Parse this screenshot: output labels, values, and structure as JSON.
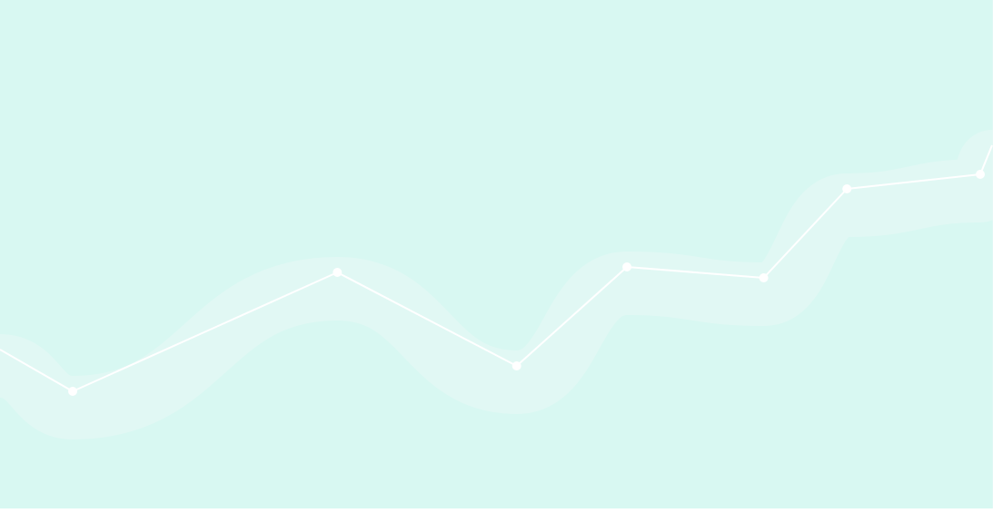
{
  "chart_data": {
    "type": "line",
    "title": "",
    "xlabel": "",
    "ylabel": "",
    "x": [
      0.0,
      0.0733,
      0.34,
      0.5208,
      0.632,
      0.7698,
      0.8537,
      0.9881,
      1.0
    ],
    "series": [
      {
        "values": [
          0.3125,
          0.2304,
          0.4643,
          0.2804,
          0.475,
          0.4536,
          0.6286,
          0.6571,
          0.7143
        ]
      }
    ],
    "xlim": [
      0,
      1
    ],
    "ylim": [
      0,
      1
    ],
    "grid": false,
    "legend": "none",
    "colors": {
      "background": "#dff8f4",
      "panel": "#d8f8f2",
      "line": "#ffffff",
      "glow": "#e6f8f5"
    }
  }
}
